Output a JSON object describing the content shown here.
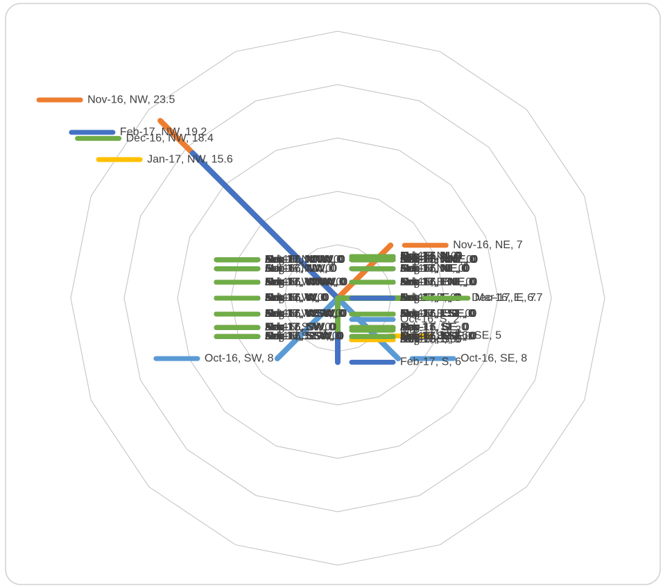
{
  "chart_data": {
    "type": "radar",
    "rlim": [
      0,
      25
    ],
    "rticks": [
      0,
      5,
      10,
      15,
      20,
      25
    ],
    "grid": true,
    "series": [
      {
        "color": "#ffc000",
        "values": [
          0,
          0,
          0,
          0,
          0,
          0,
          5,
          0,
          0,
          0,
          0,
          0,
          0,
          0,
          0,
          0
        ],
        "value_labels": [
          "Jul-16, N, 0",
          "Jul-16, NNE, 0",
          "Jul-16, NE, 0",
          "Jul-16, ENE, 0",
          "Jul-16, E, 0",
          "Jul-16, ESE, 0",
          "Jul-16, SE, 5",
          "Jul-16, SSE, 0",
          "Jul-16, S, 0",
          "Jul-16, SSW, 0",
          "Jul-16, SW, 0",
          "Jul-16, WSW, 0",
          "Jul-16, W, 0",
          "Jul-16, WNW, 0",
          "Jul-16, NW, 0",
          "Jul-16, NNW, 0"
        ]
      },
      {
        "color": "#a5a5a5",
        "values": [
          0,
          0,
          0,
          0,
          0,
          0,
          0,
          0,
          0,
          0,
          0,
          0,
          0,
          0,
          0,
          0
        ],
        "value_labels": [
          "Aug-16, N, 0",
          "Aug-16, NNE, 0",
          "Aug-16, NE, 0",
          "Aug-16, ENE, 0",
          "Aug-16, E, 0",
          "Aug-16, ESE, 0",
          "Aug-16, SE, 0",
          "Aug-16, SSE, 0",
          "Aug-16, S, 0",
          "Aug-16, SSW, 0",
          "Aug-16, SW, 0",
          "Aug-16, WSW, 0",
          "Aug-16, W, 0",
          "Aug-16, WNW, 0",
          "Aug-16, NW, 0",
          "Aug-16, NNW, 0"
        ]
      },
      {
        "color": "#a5a5a5",
        "values": [
          0,
          0,
          0,
          0,
          0,
          0,
          0,
          0,
          0,
          0,
          0,
          0,
          0,
          0,
          0,
          0
        ],
        "value_labels": [
          "Sep-16, N, 0",
          "Sep-16, NNE, 0",
          "Sep-16, NE, 0",
          "Sep-16, ENE, 0",
          "Sep-16, E, 0",
          "Sep-16, ESE, 0",
          "Sep-16, SE, 0",
          "Sep-16, SSE, 0",
          "Sep-16, S, 0",
          "Sep-16, SSW, 0",
          "Sep-16, SW, 0",
          "Sep-16, WSW, 0",
          "Sep-16, W, 0",
          "Sep-16, WNW, 0",
          "Sep-16, NW, 0",
          "Sep-16, NNW, 0"
        ]
      },
      {
        "color": "#5b9bd5",
        "values": [
          0,
          0,
          0,
          0,
          0,
          0,
          8,
          0,
          2,
          0,
          8,
          0,
          0,
          0,
          0,
          0
        ],
        "value_labels": [
          "Oct-16, N, 0",
          "Oct-16, NNE, 0",
          "Oct-16, NE, 0",
          "Oct-16, ENE, 0",
          "Oct-16, E, 0",
          "Oct-16, ESE, 0",
          "Oct-16, SE, 8",
          "Oct-16, SSE, 0",
          "Oct-16, S, 2",
          "Oct-16, SSW, 0",
          "Oct-16, SW, 8",
          "Oct-16, WSW, 0",
          "Oct-16, W, 0",
          "Oct-16, WNW, 0",
          "Oct-16, NW, 0",
          "Oct-16, NNW, 0"
        ]
      },
      {
        "color": "#ed7d31",
        "values": [
          0,
          0,
          7,
          0,
          0,
          0,
          0,
          0,
          0,
          0,
          0,
          0,
          0,
          0,
          23.5,
          0
        ],
        "value_labels": [
          "Nov-16, N, 0",
          "Nov-16, NNE, 0",
          "Nov-16, NE, 7",
          "Nov-16, ENE, 0",
          "Nov-16, E, 0",
          "Nov-16, ESE, 0",
          "Nov-16, SE, 0",
          "Nov-16, SSE, 0",
          "Nov-16, S, 0",
          "Nov-16, SSW, 0",
          "Nov-16, SW, 0",
          "Nov-16, WSW, 0",
          "Nov-16, W, 0",
          "Nov-16, WNW, 0",
          "Nov-16, NW, 23.5",
          "Nov-16, NNW, 0"
        ]
      },
      {
        "color": "#70ad47",
        "values": [
          0,
          0,
          0,
          0,
          6.7,
          0,
          0,
          0,
          0,
          0,
          0,
          0,
          0,
          0,
          18.4,
          0
        ],
        "value_labels": [
          "Dec-16, N, 0",
          "Dec-16, NNE, 0",
          "Dec-16, NE, 0",
          "Dec-16, ENE, 0",
          "Dec-16, E, 6.7",
          "Dec-16, ESE, 0",
          "Dec-16, SE, 0",
          "Dec-16, SSE, 0",
          "Dec-16, S, 0",
          "Dec-16, SSW, 0",
          "Dec-16, SW, 0",
          "Dec-16, WSW, 0",
          "Dec-16, W, 0",
          "Dec-16, WNW, 0",
          "Dec-16, NW, 18.4",
          "Dec-16, NNW, 0"
        ]
      },
      {
        "color": "#ffc000",
        "values": [
          0,
          0,
          0,
          0,
          0,
          0,
          0,
          0,
          0,
          0,
          0,
          0,
          0,
          0,
          15.6,
          0
        ],
        "value_labels": [
          "Jan-17, N, 0",
          "Jan-17, NNE, 0",
          "Jan-17, NE, 0",
          "Jan-17, ENE, 0",
          "Jan-17, E, 0",
          "Jan-17, ESE, 0",
          "Jan-17, SE, 0",
          "Jan-17, SSE, 0",
          "Jan-17, S, 0",
          "Jan-17, SSW, 0",
          "Jan-17, SW, 0",
          "Jan-17, WSW, 0",
          "Jan-17, W, 0",
          "Jan-17, WNW, 0",
          "Jan-17, NW, 15.6",
          "Jan-17, NNW, 0"
        ]
      },
      {
        "color": "#4472c4",
        "values": [
          0,
          0,
          0,
          0,
          0,
          0,
          0,
          0,
          6,
          0,
          0,
          0,
          0,
          0,
          19.2,
          0
        ],
        "value_labels": [
          "Feb-17, N, 0",
          "Feb-17, NNE, 0",
          "Feb-17, NE, 0",
          "Feb-17, ENE, 0",
          "Feb-17, E, 0",
          "Feb-17, ESE, 0",
          "Feb-17, SE, 0",
          "Feb-17, SSE, 0",
          "Feb-17, S, 6",
          "Feb-17, SSW, 0",
          "Feb-17, SW, 0",
          "Feb-17, WSW, 0",
          "Feb-17, W, 0",
          "Feb-17, WNW, 0",
          "Feb-17, NW, 19.2",
          "Feb-17, NNW, 0"
        ]
      },
      {
        "color": "#70ad47",
        "values": [
          0,
          0,
          0,
          0,
          7,
          0,
          0,
          0,
          3,
          0,
          0,
          0,
          0,
          0,
          0,
          0
        ],
        "value_labels": [
          "Mar-17, N, 0",
          "Mar-17, NNE, 0",
          "Mar-17, NE, 0",
          "Mar-17, ENE, 0",
          "Mar-17, E, 7",
          "Mar-17, ESE, 0",
          "Mar-17, SE, 0",
          "Mar-17, SSE, 0",
          "Mar-17, S, 3",
          "Mar-17, SSW, 0",
          "Mar-17, SW, 0",
          "Mar-17, WSW, 0",
          "Mar-17, W, 0",
          "Mar-17, WNW, 0",
          "Mar-17, NW, 0",
          "Mar-17, NNW, 0"
        ]
      }
    ]
  }
}
